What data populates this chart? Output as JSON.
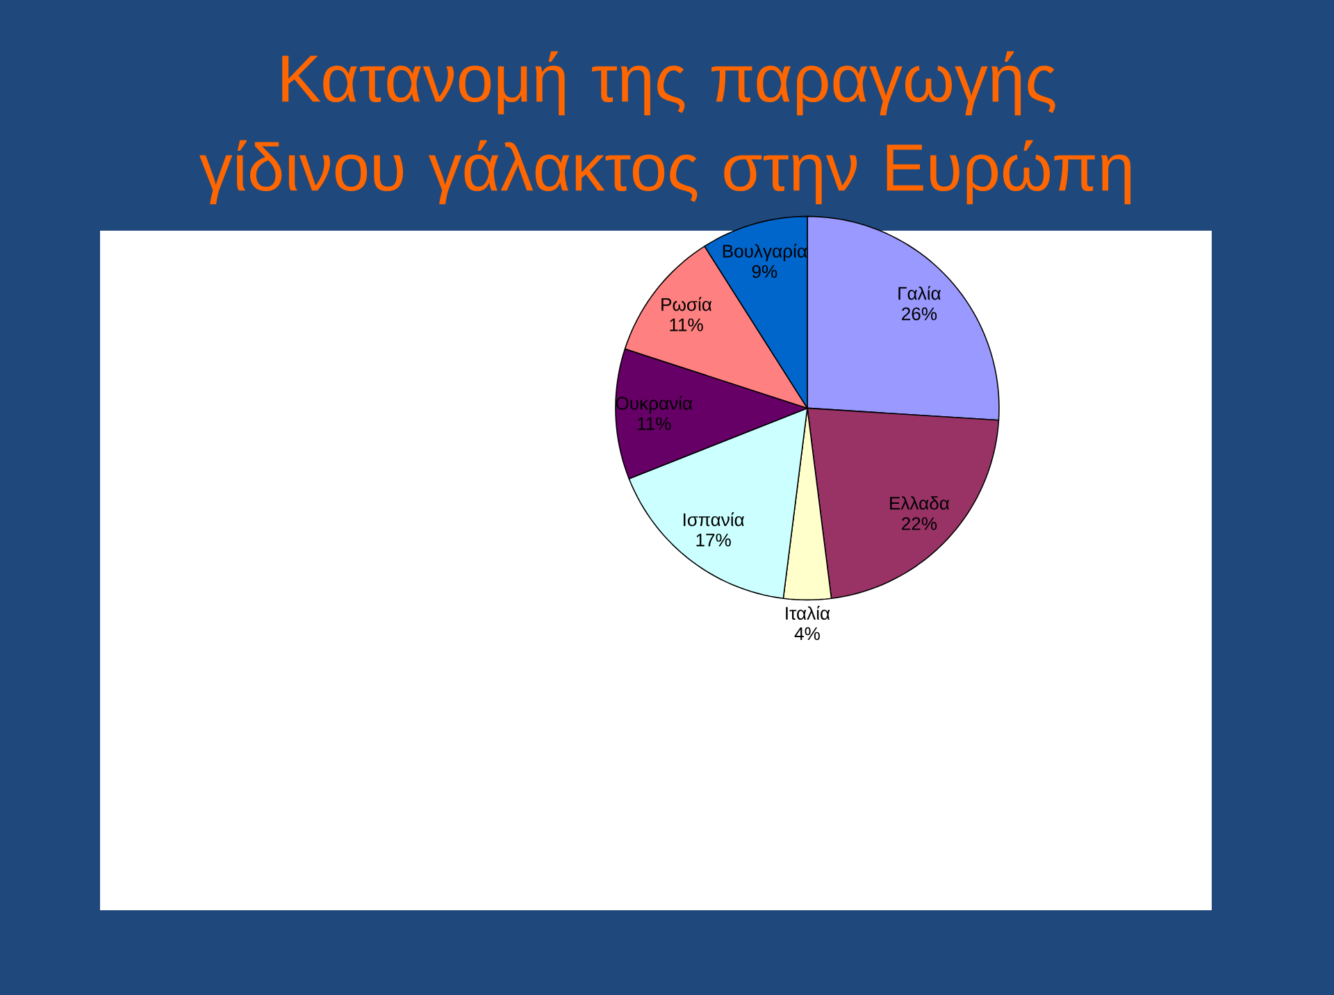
{
  "chart_data": {
    "type": "pie",
    "title": "Κατανομή της παραγωγής γίδινου γάλακτος στην Ευρώπη",
    "categories": [
      "Γαλία",
      "Ελλαδα",
      "Ιταλία",
      "Ισπανία",
      "Ουκρανία",
      "Ρωσία",
      "Βουλγαρία"
    ],
    "values": [
      26,
      22,
      4,
      17,
      11,
      11,
      9
    ],
    "value_labels": [
      "26%",
      "22%",
      "4%",
      "17%",
      "11%",
      "11%",
      "9%"
    ],
    "colors": [
      "#9999ff",
      "#993366",
      "#ffffcc",
      "#ccffff",
      "#660066",
      "#ff8080",
      "#0066cc"
    ]
  }
}
